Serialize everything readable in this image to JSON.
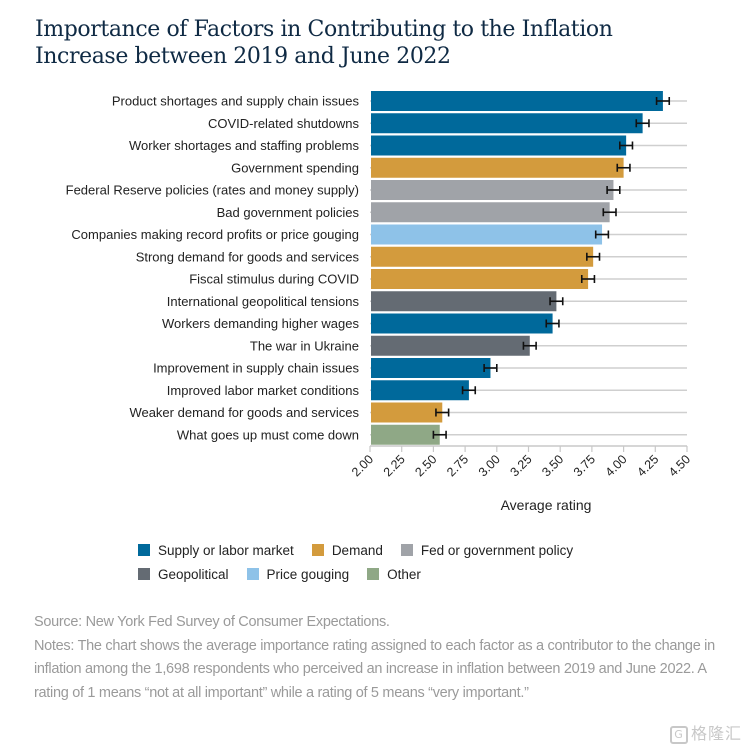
{
  "title": "Importance of Factors in Contributing to the Inflation Increase between 2019 and June 2022",
  "title_lines": [
    "Importance of Factors in Contributing to the Inflation",
    "Increase between 2019 and June 2022"
  ],
  "chart_data": {
    "type": "bar",
    "orientation": "horizontal",
    "title": "Importance of Factors in Contributing to the Inflation Increase between 2019 and June 2022",
    "xlabel": "Average rating",
    "ylabel": "",
    "xlim": [
      2.0,
      4.5
    ],
    "xticks": [
      "2.00",
      "2.25",
      "2.50",
      "2.75",
      "3.00",
      "3.25",
      "3.50",
      "3.75",
      "4.00",
      "4.25",
      "4.50"
    ],
    "grid": "horizontal row guides",
    "error_bars": true,
    "categories": [
      "Product shortages and supply chain issues",
      "COVID-related shutdowns",
      "Worker shortages and staffing problems",
      "Government spending",
      "Federal Reserve policies (rates and money supply)",
      "Bad government policies",
      "Companies making record profits or price gouging",
      "Strong demand for goods and services",
      "Fiscal stimulus during COVID",
      "International geopolitical tensions",
      "Workers demanding higher wages",
      "The war in Ukraine",
      "Improvement in supply chain issues",
      "Improved labor market conditions",
      "Weaker demand for goods and services",
      "What goes up must come down"
    ],
    "values": [
      4.31,
      4.15,
      4.02,
      4.0,
      3.92,
      3.89,
      3.83,
      3.76,
      3.72,
      3.47,
      3.44,
      3.26,
      2.95,
      2.78,
      2.57,
      2.55
    ],
    "error_low": [
      4.26,
      4.1,
      3.97,
      3.95,
      3.87,
      3.84,
      3.78,
      3.71,
      3.67,
      3.42,
      3.39,
      3.21,
      2.9,
      2.73,
      2.52,
      2.5
    ],
    "error_high": [
      4.36,
      4.2,
      4.07,
      4.05,
      3.97,
      3.94,
      3.88,
      3.81,
      3.77,
      3.52,
      3.49,
      3.31,
      3.0,
      2.83,
      2.62,
      2.6
    ],
    "groups": [
      "supply",
      "supply",
      "supply",
      "demand",
      "fed",
      "fed",
      "gouging",
      "demand",
      "demand",
      "geo",
      "supply",
      "geo",
      "supply",
      "supply",
      "demand",
      "other"
    ],
    "legend": [
      {
        "key": "supply",
        "label": "Supply or labor market",
        "color": "#00699b"
      },
      {
        "key": "demand",
        "label": "Demand",
        "color": "#d39b3d"
      },
      {
        "key": "fed",
        "label": "Fed or government policy",
        "color": "#a0a3a8"
      },
      {
        "key": "geo",
        "label": "Geopolitical",
        "color": "#646b73"
      },
      {
        "key": "gouging",
        "label": "Price gouging",
        "color": "#8ec2e8"
      },
      {
        "key": "other",
        "label": "Other",
        "color": "#8fa886"
      }
    ],
    "legend_position": "bottom"
  },
  "notes": {
    "source": "Source: New York Fed Survey of Consumer Expectations.",
    "text": "Notes: The chart shows the average importance rating assigned to each factor as a contributor to the change in inflation among the 1,698 respondents who perceived an increase in inflation between 2019 and June 2022. A rating of 1 means “not at all important” while a rating of 5 means “very important.”"
  },
  "watermark": {
    "text": "格隆汇",
    "icon": "g-logo-icon"
  }
}
